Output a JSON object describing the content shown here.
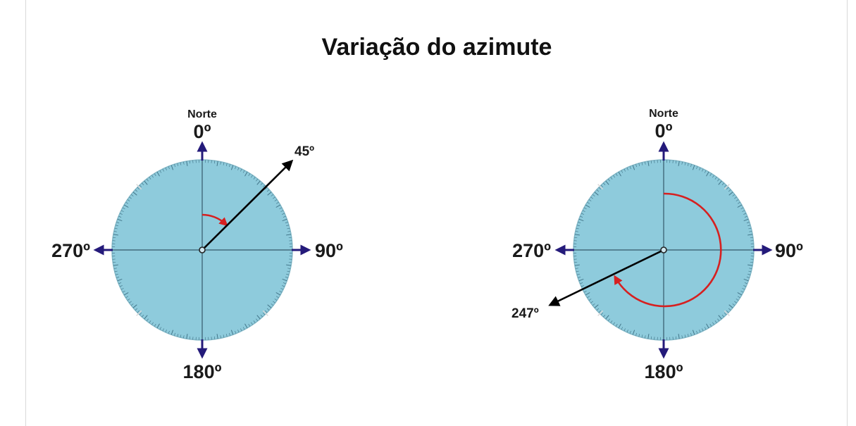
{
  "title": "Variação do azimute",
  "colors": {
    "disc": "#8ecbdc",
    "disc_edge": "#7fb6c6",
    "cardinal_arrow": "#241a7a",
    "azimuth_arrow": "#000000",
    "rotation_arc": "#d62020"
  },
  "compasses": [
    {
      "north_word": "Norte",
      "label_n": "0º",
      "label_e": "90º",
      "label_s": "180º",
      "label_w": "270º",
      "azimuth_label": "45º",
      "azimuth_deg": 45
    },
    {
      "north_word": "Norte",
      "label_n": "0º",
      "label_e": "90º",
      "label_s": "180º",
      "label_w": "270º",
      "azimuth_label": "247º",
      "azimuth_deg": 247
    }
  ]
}
